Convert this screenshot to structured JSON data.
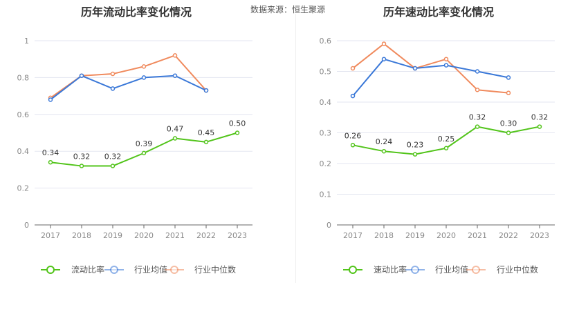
{
  "source": {
    "label": "数据来源：",
    "value": "恒生聚源"
  },
  "colors": {
    "company": "#52c41a",
    "average": "#3a78d8",
    "median": "#f08a5d",
    "grid": "#e3e6f0",
    "axis": "#666666"
  },
  "chart_data": [
    {
      "type": "line",
      "title": "历年流动比率变化情况",
      "categories": [
        "2017",
        "2018",
        "2019",
        "2020",
        "2021",
        "2022",
        "2023"
      ],
      "ylim": [
        0,
        1
      ],
      "yticks": [
        0,
        0.2,
        0.4,
        0.6,
        0.8,
        1
      ],
      "ytick_labels": [
        "0",
        "0.2",
        "0.4",
        "0.6",
        "0.8",
        "1"
      ],
      "series": [
        {
          "name": "流动比率",
          "key": "company",
          "values": [
            0.34,
            0.32,
            0.32,
            0.39,
            0.47,
            0.45,
            0.5
          ],
          "labels": [
            "0.34",
            "0.32",
            "0.32",
            "0.39",
            "0.47",
            "0.45",
            "0.50"
          ]
        },
        {
          "name": "行业均值",
          "key": "average",
          "values": [
            0.68,
            0.81,
            0.74,
            0.8,
            0.81,
            0.73,
            null
          ]
        },
        {
          "name": "行业中位数",
          "key": "median",
          "values": [
            0.69,
            0.81,
            0.82,
            0.86,
            0.92,
            0.73,
            null
          ]
        }
      ]
    },
    {
      "type": "line",
      "title": "历年速动比率变化情况",
      "categories": [
        "2017",
        "2018",
        "2019",
        "2020",
        "2021",
        "2022",
        "2023"
      ],
      "ylim": [
        0,
        0.6
      ],
      "yticks": [
        0,
        0.1,
        0.2,
        0.3,
        0.4,
        0.5,
        0.6
      ],
      "ytick_labels": [
        "0",
        "0.1",
        "0.2",
        "0.3",
        "0.4",
        "0.5",
        "0.6"
      ],
      "series": [
        {
          "name": "速动比率",
          "key": "company",
          "values": [
            0.26,
            0.24,
            0.23,
            0.25,
            0.32,
            0.3,
            0.32
          ],
          "labels": [
            "0.26",
            "0.24",
            "0.23",
            "0.25",
            "0.32",
            "0.30",
            "0.32"
          ]
        },
        {
          "name": "行业均值",
          "key": "average",
          "values": [
            0.42,
            0.54,
            0.51,
            0.52,
            0.5,
            0.48,
            null
          ]
        },
        {
          "name": "行业中位数",
          "key": "median",
          "values": [
            0.51,
            0.59,
            0.51,
            0.54,
            0.44,
            0.43,
            null
          ]
        }
      ]
    }
  ]
}
